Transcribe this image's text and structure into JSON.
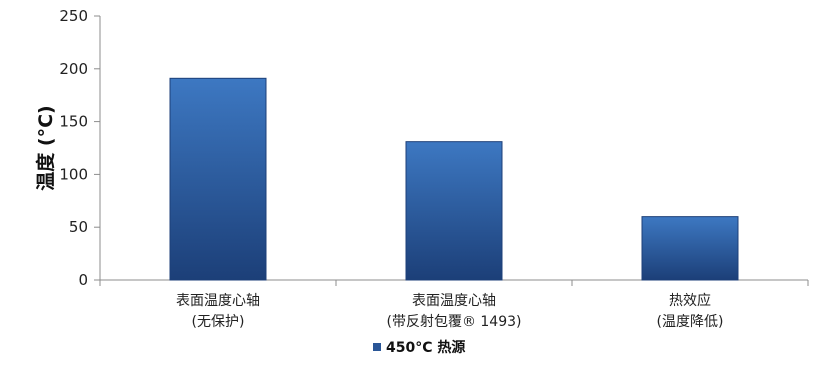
{
  "chart_data": {
    "type": "bar",
    "categories": [
      [
        "表面温度心轴",
        "(无保护)"
      ],
      [
        "表面温度心轴",
        "(带反射包覆® 1493)"
      ],
      [
        "热效应",
        "(温度降低)"
      ]
    ],
    "series": [
      {
        "name": "450°C 热源",
        "values": [
          191,
          131,
          60
        ]
      }
    ],
    "ylabel": "温度 (°C)",
    "ylim": [
      0,
      250
    ],
    "yticks": [
      0,
      50,
      100,
      150,
      200,
      250
    ],
    "grid": false,
    "legend_position": "bottom",
    "colors": {
      "bar_light": "#3d78c2",
      "bar_dark": "#1c3f78",
      "axis": "#8c8c8c",
      "legend_swatch": "#2a5697"
    }
  }
}
